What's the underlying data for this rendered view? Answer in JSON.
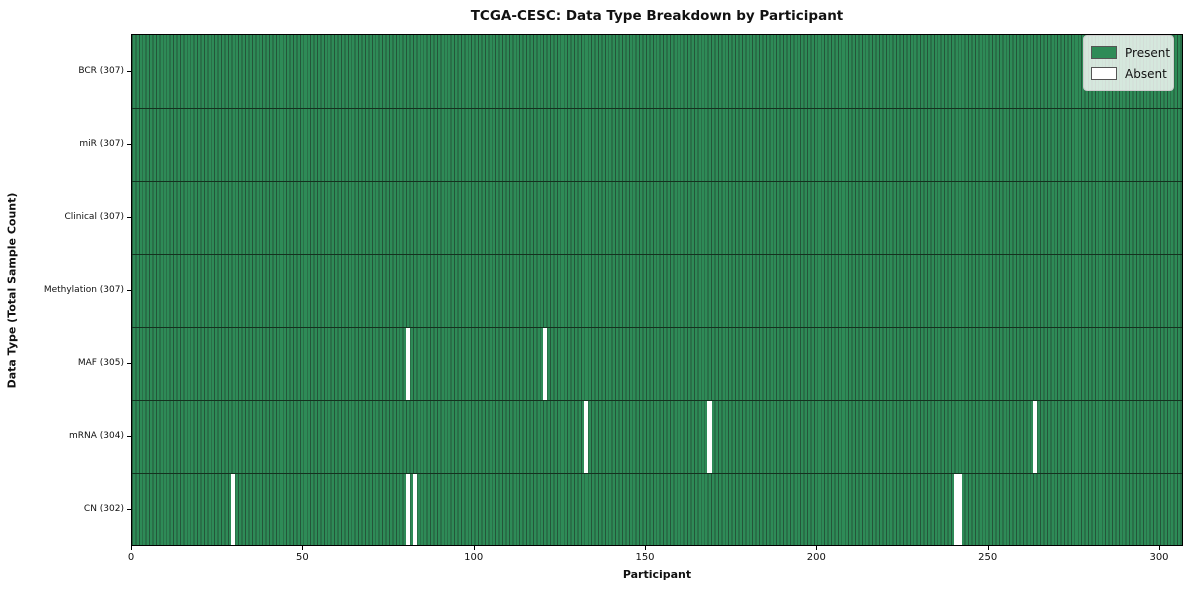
{
  "chart_data": {
    "type": "heatmap",
    "title": "TCGA-CESC: Data Type Breakdown by Participant",
    "xlabel": "Participant",
    "ylabel": "Data Type (Total Sample Count)",
    "n_participants": 307,
    "x_range": [
      0,
      307
    ],
    "xticks": [
      0,
      50,
      100,
      150,
      200,
      250,
      300
    ],
    "legend": {
      "position": "upper right",
      "present_label": "Present",
      "absent_label": "Absent"
    },
    "rows": [
      {
        "data_type": "BCR",
        "label": "BCR (307)",
        "total_sample_count": 307,
        "absent_participants": []
      },
      {
        "data_type": "miR",
        "label": "miR (307)",
        "total_sample_count": 307,
        "absent_participants": []
      },
      {
        "data_type": "Clinical",
        "label": "Clinical (307)",
        "total_sample_count": 307,
        "absent_participants": []
      },
      {
        "data_type": "Methylation",
        "label": "Methylation (307)",
        "total_sample_count": 307,
        "absent_participants": []
      },
      {
        "data_type": "MAF",
        "label": "MAF (305)",
        "total_sample_count": 305,
        "absent_participants": [
          80,
          120
        ]
      },
      {
        "data_type": "mRNA",
        "label": "mRNA (304)",
        "total_sample_count": 304,
        "absent_participants": [
          132,
          168,
          263
        ]
      },
      {
        "data_type": "CN",
        "label": "CN (302)",
        "total_sample_count": 302,
        "absent_participants": [
          29,
          80,
          82,
          240,
          241
        ]
      }
    ],
    "colors": {
      "present": "#2e8b57",
      "absent": "#ffffff",
      "cell_edge": "#24563a",
      "row_divider": "#14321f",
      "plot_border": "#000000",
      "legend_bg": "rgba(255,255,255,0.8)",
      "legend_border": "#cccccc",
      "text": "#111111"
    }
  }
}
